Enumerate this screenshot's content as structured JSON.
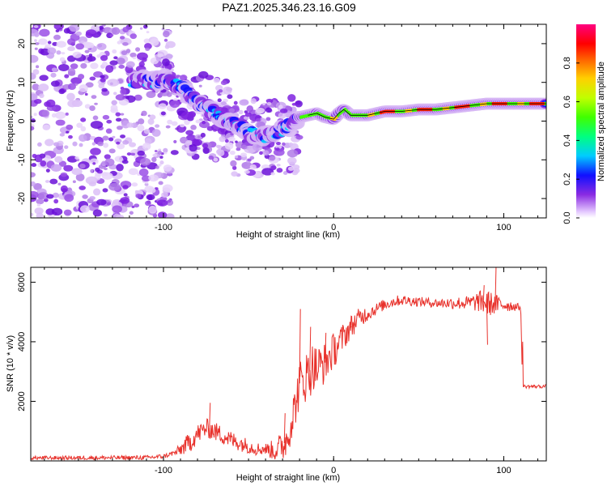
{
  "title": "PAZ1.2025.346.23.16.G09",
  "chart_data": [
    {
      "type": "heatmap",
      "name": "spectrogram",
      "xlabel": "Height of straight line (km)",
      "ylabel": "Frequency (Hz)",
      "xlim": [
        -178,
        125
      ],
      "ylim": [
        -25,
        25
      ],
      "xticks": [
        {
          "value": -100,
          "label": "-100"
        },
        {
          "value": 0,
          "label": "0"
        },
        {
          "value": 100,
          "label": "100"
        }
      ],
      "yticks": [
        {
          "value": -20,
          "label": "-20"
        },
        {
          "value": -10,
          "label": "-10"
        },
        {
          "value": 0,
          "label": "0"
        },
        {
          "value": 10,
          "label": "10"
        },
        {
          "value": 20,
          "label": "20"
        }
      ],
      "colorbar": {
        "label": "Normalized spectral amplitude",
        "range": [
          0,
          1
        ],
        "ticks": [
          {
            "value": 0.0,
            "label": "0.0"
          },
          {
            "value": 0.2,
            "label": "0.2"
          },
          {
            "value": 0.4,
            "label": "0.4"
          },
          {
            "value": 0.6,
            "label": "0.6"
          },
          {
            "value": 0.8,
            "label": "0.8"
          }
        ]
      },
      "ridge": [
        [
          -118,
          10
        ],
        [
          -113,
          11
        ],
        [
          -107,
          10
        ],
        [
          -100,
          11
        ],
        [
          -95,
          10
        ],
        [
          -90,
          9
        ],
        [
          -85,
          7
        ],
        [
          -80,
          5
        ],
        [
          -75,
          3.5
        ],
        [
          -70,
          2
        ],
        [
          -65,
          0.5
        ],
        [
          -60,
          -0.5
        ],
        [
          -55,
          -1.5
        ],
        [
          -50,
          -3
        ],
        [
          -45,
          -3.5
        ],
        [
          -40,
          -4
        ],
        [
          -35,
          -3
        ],
        [
          -30,
          -2
        ],
        [
          -25,
          -1
        ],
        [
          -20,
          1
        ],
        [
          -15,
          1.5
        ],
        [
          -10,
          2
        ],
        [
          -5,
          1
        ],
        [
          0,
          0.5
        ],
        [
          3,
          2
        ],
        [
          6,
          3
        ],
        [
          10,
          1.5
        ],
        [
          20,
          1.5
        ],
        [
          30,
          2.5
        ],
        [
          40,
          2.5
        ],
        [
          50,
          3
        ],
        [
          60,
          3
        ],
        [
          70,
          3.5
        ],
        [
          80,
          4
        ],
        [
          90,
          4.5
        ],
        [
          100,
          4.5
        ],
        [
          110,
          4.5
        ],
        [
          125,
          4.5
        ]
      ],
      "scatter_bands": [
        [
          -178,
          -95,
          -25,
          25,
          0.3
        ],
        [
          -95,
          -60,
          -10,
          12,
          0.5
        ],
        [
          -60,
          -20,
          -14,
          6,
          0.5
        ]
      ]
    },
    {
      "type": "line",
      "name": "snr",
      "xlabel": "Height of straight line (km)",
      "ylabel": "SNR (10 * v/v)",
      "xlim": [
        -178,
        125
      ],
      "ylim": [
        0,
        6500
      ],
      "xticks": [
        {
          "value": -100,
          "label": "-100"
        },
        {
          "value": 0,
          "label": "0"
        },
        {
          "value": 100,
          "label": "100"
        }
      ],
      "yticks": [
        {
          "value": 2000,
          "label": "2000"
        },
        {
          "value": 4000,
          "label": "4000"
        },
        {
          "value": 6000,
          "label": "6000"
        }
      ],
      "series": [
        {
          "name": "SNR",
          "color": "#e8312b",
          "envelope_x": [
            -178,
            -110,
            -100,
            -92,
            -85,
            -80,
            -75,
            -70,
            -65,
            -60,
            -55,
            -50,
            -45,
            -40,
            -35,
            -30,
            -27,
            -25,
            -22,
            -20,
            -15,
            -12,
            -10,
            -5,
            0,
            5,
            10,
            15,
            20,
            25,
            30,
            35,
            40,
            50,
            60,
            70,
            80,
            85,
            90,
            95,
            100,
            105,
            110,
            111,
            115,
            125
          ],
          "envelope_y": [
            100,
            110,
            150,
            300,
            600,
            900,
            1100,
            1000,
            850,
            700,
            600,
            500,
            400,
            400,
            350,
            500,
            800,
            1300,
            2000,
            2600,
            2900,
            3200,
            3100,
            3300,
            3700,
            4100,
            4500,
            4800,
            4950,
            5100,
            5250,
            5350,
            5400,
            5350,
            5300,
            5300,
            5300,
            5350,
            5300,
            5250,
            5250,
            5200,
            5150,
            2500,
            2500,
            2500
          ],
          "noise_amplitude": [
            [
              -178,
              60
            ],
            [
              -95,
              80
            ],
            [
              -85,
              350
            ],
            [
              -60,
              300
            ],
            [
              -40,
              200
            ],
            [
              -28,
              600
            ],
            [
              -15,
              900
            ],
            [
              0,
              600
            ],
            [
              10,
              400
            ],
            [
              25,
              200
            ],
            [
              60,
              150
            ],
            [
              80,
              250
            ],
            [
              90,
              450
            ],
            [
              100,
              250
            ],
            [
              110,
              100
            ],
            [
              112,
              60
            ],
            [
              125,
              60
            ]
          ],
          "spikes": [
            [
              -73,
              1950
            ],
            [
              -29,
              1600
            ],
            [
              -20,
              5100
            ],
            [
              -14,
              4500
            ],
            [
              -5,
              4300
            ],
            [
              10,
              4500
            ],
            [
              88,
              5900
            ],
            [
              95,
              6500
            ],
            [
              90,
              3900
            ]
          ]
        }
      ]
    }
  ]
}
